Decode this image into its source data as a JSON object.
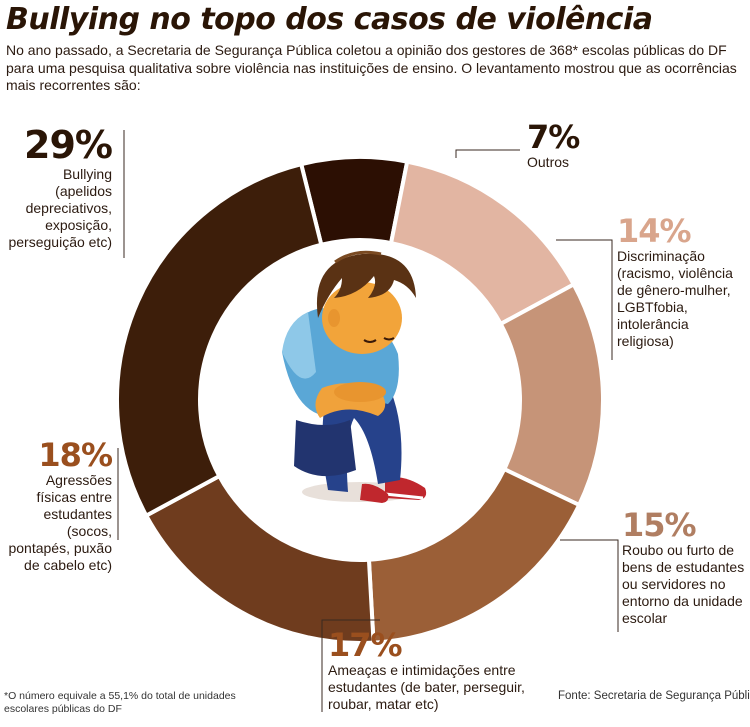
{
  "title": "Bullying no topo dos casos de violência",
  "intro": "No ano passado, a Secretaria de Segurança Pública coletou a opinião dos gestores de 368* escolas públicas do DF para uma pesquisa qualitativa sobre violência nas instituições de ensino. O levantamento mostrou que as ocorrências mais recorrentes são:",
  "footnote": "*O número equivale a 55,1% do total de unidades escolares públicas do DF",
  "source": "Fonte: Secretaria de Segurança Pública",
  "colors": {
    "accent_pct": "#9a4f1e",
    "dark_pct": "#2a1506"
  },
  "chart_data": {
    "type": "pie",
    "categories": [
      "Outros",
      "Discriminação",
      "Roubo ou furto",
      "Ameaças e intimidações",
      "Agressões físicas",
      "Bullying"
    ],
    "values": [
      7,
      14,
      15,
      17,
      18,
      29
    ],
    "value_labels": [
      "7%",
      "14%",
      "15%",
      "17%",
      "18%",
      "29%"
    ],
    "descriptions": [
      "Outros",
      "Discriminação (racismo, violência de gênero-mulher, LGBTfobia, intolerância religiosa)",
      "Roubo ou furto de bens de estudantes ou servidores no entorno da unidade escolar",
      "Ameaças e intimidações entre estudantes (de bater, perseguir, roubar, matar etc)",
      "Agressões físicas entre estudantes (socos, pontapés, puxão de cabelo etc)",
      "Bullying (apelidos depreciativos, exposição, perseguição etc)"
    ],
    "colors": [
      "#2c0f03",
      "#e2b5a2",
      "#c69478",
      "#9b5f37",
      "#6f3c1e",
      "#3d1e0a"
    ],
    "unit": "%"
  }
}
